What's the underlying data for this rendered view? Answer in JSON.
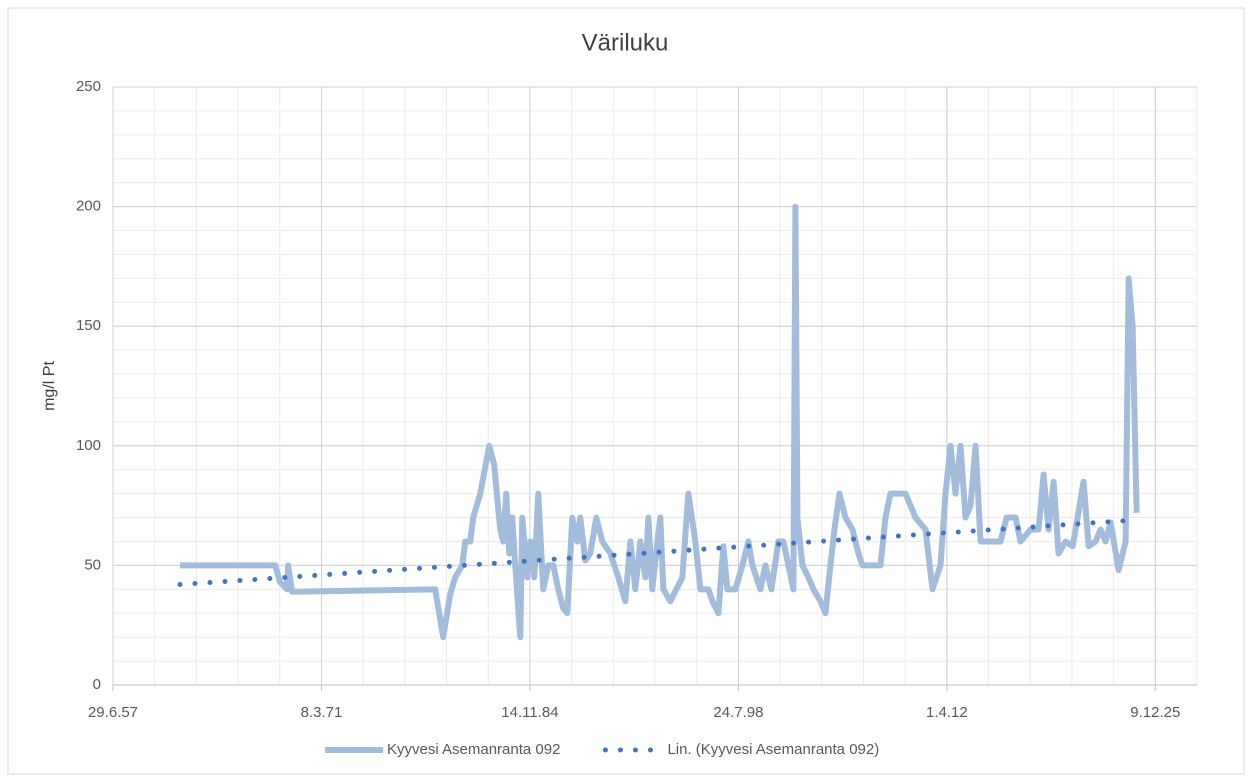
{
  "chart_data": {
    "type": "line",
    "title": "Väriluku",
    "ylabel": "mg/l Pt",
    "xlim": [
      21000,
      47000
    ],
    "xticks": [
      {
        "value": 21000,
        "label": "29.6.57"
      },
      {
        "value": 26000,
        "label": "8.3.71"
      },
      {
        "value": 31000,
        "label": "14.11.84"
      },
      {
        "value": 36000,
        "label": "24.7.98"
      },
      {
        "value": 41000,
        "label": "1.4.12"
      },
      {
        "value": 46000,
        "label": "9.12.25"
      }
    ],
    "ylim": [
      0,
      250
    ],
    "yticks": [
      0,
      50,
      100,
      150,
      200,
      250
    ],
    "grid": true,
    "minor_grid": true,
    "legend": "bottom",
    "series": [
      {
        "name": "Kyyvesi Asemanranta 092",
        "color": "#a3bcdc",
        "style": "solid",
        "x": [
          22608,
          24888,
          25008,
          25176,
          25200,
          25296,
          28728,
          28920,
          29088,
          29208,
          29376,
          29448,
          29568,
          29640,
          29808,
          30024,
          30144,
          30216,
          30288,
          30360,
          30432,
          30504,
          30576,
          30648,
          30768,
          30816,
          30936,
          31008,
          31104,
          31200,
          31320,
          31440,
          31560,
          31680,
          31800,
          31896,
          32016,
          32136,
          32208,
          32328,
          32448,
          32592,
          32736,
          32928,
          33120,
          33288,
          33408,
          33528,
          33648,
          33768,
          33840,
          33936,
          34056,
          34128,
          34200,
          34368,
          34512,
          34656,
          34800,
          34968,
          35088,
          35280,
          35376,
          35520,
          35640,
          35736,
          35928,
          36096,
          36240,
          36336,
          36528,
          36648,
          36792,
          36960,
          37080,
          37200,
          37320,
          37368,
          37416,
          37536,
          37680,
          37800,
          37968,
          38088,
          38208,
          38304,
          38424,
          38568,
          38736,
          38880,
          38976,
          39168,
          39408,
          39528,
          39648,
          40008,
          40248,
          40488,
          40656,
          40848,
          40968,
          41088,
          41208,
          41328,
          41448,
          41568,
          41688,
          41808,
          42288,
          42432,
          42648,
          42768,
          43008,
          43200,
          43320,
          43440,
          43560,
          43680,
          43848,
          44016,
          44136,
          44280,
          44400,
          44568,
          44688,
          44808,
          44928,
          45120,
          45288,
          45360,
          45456,
          45552
        ],
        "values": [
          50,
          50,
          43,
          40,
          50,
          39,
          40,
          20,
          38,
          45,
          50,
          60,
          60,
          70,
          80,
          100,
          92,
          78,
          65,
          60,
          80,
          55,
          70,
          50,
          20,
          70,
          45,
          60,
          45,
          80,
          40,
          50,
          50,
          40,
          32,
          30,
          70,
          60,
          70,
          52,
          55,
          70,
          60,
          55,
          45,
          35,
          60,
          40,
          60,
          45,
          70,
          40,
          60,
          70,
          40,
          35,
          40,
          45,
          80,
          60,
          40,
          40,
          35,
          30,
          58,
          40,
          40,
          50,
          60,
          50,
          40,
          50,
          40,
          60,
          60,
          50,
          40,
          200,
          70,
          50,
          45,
          40,
          35,
          30,
          50,
          65,
          80,
          70,
          65,
          55,
          50,
          50,
          50,
          70,
          80,
          80,
          70,
          65,
          40,
          50,
          80,
          100,
          80,
          100,
          70,
          75,
          100,
          60,
          60,
          70,
          70,
          60,
          65,
          65,
          88,
          65,
          85,
          55,
          60,
          58,
          70,
          85,
          58,
          60,
          65,
          60,
          68,
          48,
          60,
          170,
          150,
          72
        ]
      },
      {
        "name": "Lin. (Kyyvesi Asemanranta 092)",
        "color": "#4472c4",
        "style": "dotted",
        "x": [
          22608,
          45552
        ],
        "values": [
          42,
          69
        ]
      }
    ]
  }
}
